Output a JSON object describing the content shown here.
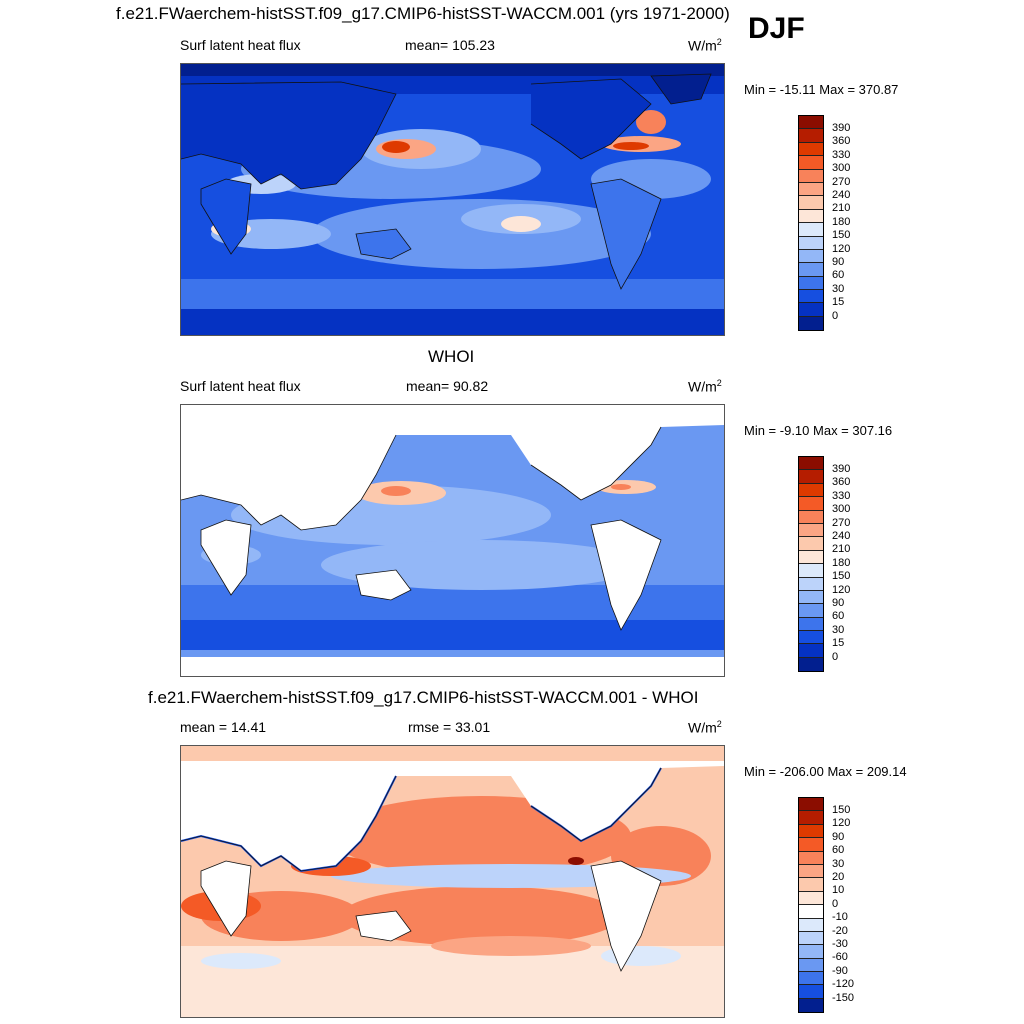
{
  "season": "DJF",
  "panels": [
    {
      "title": "f.e21.FWaerchem-histSST.f09_g17.CMIP6-histSST-WACCM.001 (yrs 1971-2000)",
      "left_label": "Surf latent heat flux",
      "center_label": "mean= 105.23",
      "units": "W/m",
      "units_sup": "2",
      "minmax": "Min = -15.11 Max = 370.87",
      "colorbar_labels": [
        "390",
        "360",
        "330",
        "300",
        "270",
        "240",
        "210",
        "180",
        "150",
        "120",
        "90",
        "60",
        "30",
        "15",
        "0"
      ],
      "colorbar_colors": [
        "#8b0d00",
        "#b51d00",
        "#de3a00",
        "#f45a26",
        "#f8825a",
        "#fba584",
        "#fcc9ad",
        "#fde6d8",
        "#dce9fb",
        "#bcd3fa",
        "#93b7f7",
        "#6a98f2",
        "#3d74ec",
        "#164fe0",
        "#0532c2",
        "#021f8f"
      ]
    },
    {
      "title": "WHOI",
      "left_label": "Surf latent heat flux",
      "center_label": "mean=  90.82",
      "units": "W/m",
      "units_sup": "2",
      "minmax": "Min =  -9.10 Max = 307.16",
      "colorbar_labels": [
        "390",
        "360",
        "330",
        "300",
        "270",
        "240",
        "210",
        "180",
        "150",
        "120",
        "90",
        "60",
        "30",
        "15",
        "0"
      ],
      "colorbar_colors": [
        "#8b0d00",
        "#b51d00",
        "#de3a00",
        "#f45a26",
        "#f8825a",
        "#fba584",
        "#fcc9ad",
        "#fde6d8",
        "#dce9fb",
        "#bcd3fa",
        "#93b7f7",
        "#6a98f2",
        "#3d74ec",
        "#164fe0",
        "#0532c2",
        "#021f8f"
      ]
    },
    {
      "title": "f.e21.FWaerchem-histSST.f09_g17.CMIP6-histSST-WACCM.001 - WHOI",
      "left_label": "mean =  14.41",
      "center_label": "rmse =  33.01",
      "units": "W/m",
      "units_sup": "2",
      "minmax": "Min = -206.00 Max = 209.14",
      "colorbar_labels": [
        "150",
        "120",
        "90",
        "60",
        "30",
        "20",
        "10",
        "0",
        "-10",
        "-20",
        "-30",
        "-60",
        "-90",
        "-120",
        "-150"
      ],
      "colorbar_colors": [
        "#8b0d00",
        "#b51d00",
        "#de3a00",
        "#f45a26",
        "#f8825a",
        "#fba584",
        "#fcc9ad",
        "#fde6d8",
        "#ffffff",
        "#dce9fb",
        "#bcd3fa",
        "#93b7f7",
        "#6a98f2",
        "#3d74ec",
        "#164fe0",
        "#021f8f"
      ]
    }
  ]
}
